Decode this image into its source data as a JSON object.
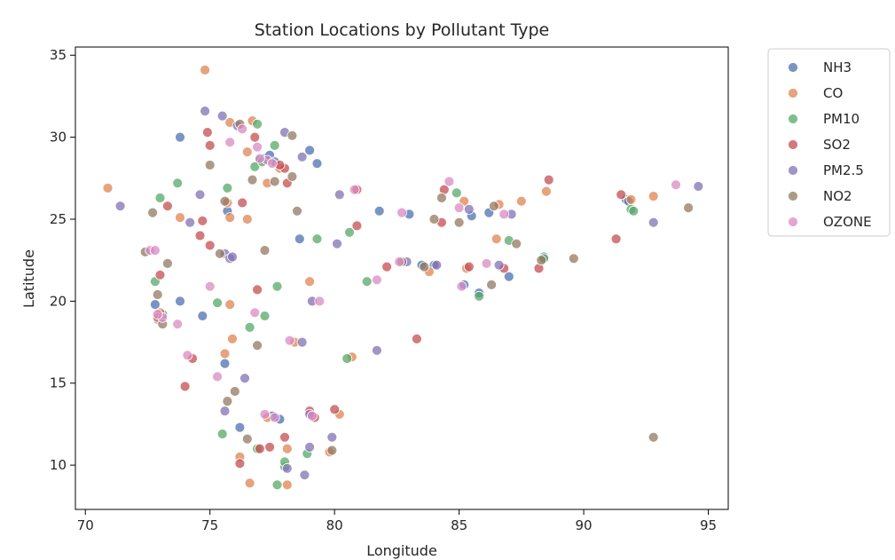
{
  "chart_data": {
    "type": "scatter",
    "title": "Station Locations by Pollutant Type",
    "xlabel": "Longitude",
    "ylabel": "Latitude",
    "xlim": [
      69.6,
      95.8
    ],
    "ylim": [
      7.3,
      35.5
    ],
    "xticks": [
      70,
      75,
      80,
      85,
      90,
      95
    ],
    "yticks": [
      10,
      15,
      20,
      25,
      30,
      35
    ],
    "grid": false,
    "legend_position": "outside-top-right",
    "series": [
      {
        "name": "NH3",
        "color": "#4c72b0",
        "points": [
          [
            73.8,
            30.0
          ],
          [
            77.0,
            28.6
          ],
          [
            77.2,
            28.7
          ],
          [
            77.4,
            28.9
          ],
          [
            77.6,
            28.5
          ],
          [
            79.0,
            29.2
          ],
          [
            79.3,
            28.4
          ],
          [
            72.8,
            19.8
          ],
          [
            73.8,
            20.0
          ],
          [
            74.7,
            19.1
          ],
          [
            75.7,
            25.5
          ],
          [
            77.8,
            12.8
          ],
          [
            77.5,
            13.0
          ],
          [
            75.6,
            16.2
          ],
          [
            76.2,
            12.3
          ],
          [
            72.9,
            18.9
          ],
          [
            73.1,
            19.2
          ],
          [
            81.8,
            25.5
          ],
          [
            83.0,
            25.3
          ],
          [
            84.0,
            22.2
          ],
          [
            85.2,
            21.0
          ],
          [
            85.5,
            25.2
          ],
          [
            86.2,
            25.4
          ],
          [
            87.0,
            21.5
          ],
          [
            88.4,
            22.7
          ],
          [
            91.7,
            26.2
          ],
          [
            91.8,
            26.1
          ],
          [
            83.5,
            22.2
          ],
          [
            78.6,
            23.8
          ],
          [
            85.8,
            20.5
          ]
        ]
      },
      {
        "name": "CO",
        "color": "#dd8452",
        "points": [
          [
            70.9,
            26.9
          ],
          [
            74.8,
            34.1
          ],
          [
            76.7,
            31.0
          ],
          [
            75.8,
            30.9
          ],
          [
            76.5,
            29.1
          ],
          [
            77.8,
            28.1
          ],
          [
            77.3,
            27.2
          ],
          [
            75.7,
            26.0
          ],
          [
            75.8,
            25.1
          ],
          [
            76.5,
            25.0
          ],
          [
            73.8,
            25.1
          ],
          [
            73.0,
            19.3
          ],
          [
            72.9,
            19.0
          ],
          [
            75.9,
            17.7
          ],
          [
            75.8,
            19.8
          ],
          [
            75.6,
            16.8
          ],
          [
            76.2,
            10.5
          ],
          [
            76.6,
            8.9
          ],
          [
            78.1,
            8.8
          ],
          [
            79.8,
            10.8
          ],
          [
            78.1,
            11.0
          ],
          [
            77.3,
            12.9
          ],
          [
            80.2,
            13.1
          ],
          [
            79.0,
            21.2
          ],
          [
            80.7,
            16.6
          ],
          [
            83.8,
            21.8
          ],
          [
            85.2,
            26.1
          ],
          [
            85.3,
            22.0
          ],
          [
            86.6,
            25.9
          ],
          [
            87.5,
            26.1
          ],
          [
            88.5,
            26.7
          ],
          [
            92.8,
            26.4
          ],
          [
            91.9,
            26.2
          ],
          [
            78.4,
            17.5
          ],
          [
            86.5,
            23.8
          ]
        ]
      },
      {
        "name": "PM10",
        "color": "#55a868",
        "points": [
          [
            76.9,
            30.8
          ],
          [
            77.6,
            29.5
          ],
          [
            73.0,
            26.3
          ],
          [
            73.7,
            27.2
          ],
          [
            75.7,
            26.9
          ],
          [
            76.8,
            28.2
          ],
          [
            77.1,
            28.5
          ],
          [
            79.3,
            23.8
          ],
          [
            80.6,
            24.2
          ],
          [
            72.8,
            21.2
          ],
          [
            75.3,
            19.9
          ],
          [
            77.2,
            19.1
          ],
          [
            76.6,
            18.4
          ],
          [
            77.7,
            20.9
          ],
          [
            76.9,
            11.0
          ],
          [
            77.7,
            8.8
          ],
          [
            78.0,
            9.9
          ],
          [
            78.0,
            10.2
          ],
          [
            81.3,
            21.2
          ],
          [
            80.5,
            16.5
          ],
          [
            84.9,
            26.6
          ],
          [
            85.8,
            20.3
          ],
          [
            87.0,
            23.7
          ],
          [
            88.4,
            22.6
          ],
          [
            91.9,
            25.6
          ],
          [
            92.0,
            25.5
          ],
          [
            78.9,
            10.7
          ],
          [
            75.5,
            11.9
          ]
        ]
      },
      {
        "name": "SO2",
        "color": "#c44e52",
        "points": [
          [
            74.9,
            30.3
          ],
          [
            75.0,
            29.5
          ],
          [
            76.8,
            30.0
          ],
          [
            78.0,
            28.1
          ],
          [
            78.1,
            27.2
          ],
          [
            77.8,
            28.3
          ],
          [
            76.3,
            26.0
          ],
          [
            74.7,
            24.9
          ],
          [
            73.3,
            25.8
          ],
          [
            74.6,
            24.0
          ],
          [
            73.0,
            21.6
          ],
          [
            75.0,
            23.4
          ],
          [
            76.9,
            20.7
          ],
          [
            74.0,
            14.8
          ],
          [
            74.3,
            16.5
          ],
          [
            76.2,
            10.1
          ],
          [
            77.4,
            11.1
          ],
          [
            77.0,
            11.0
          ],
          [
            78.0,
            11.7
          ],
          [
            79.2,
            12.9
          ],
          [
            79.0,
            13.3
          ],
          [
            80.0,
            13.4
          ],
          [
            80.9,
            26.8
          ],
          [
            80.9,
            24.6
          ],
          [
            82.1,
            22.1
          ],
          [
            83.3,
            17.7
          ],
          [
            84.3,
            24.8
          ],
          [
            85.4,
            22.1
          ],
          [
            86.8,
            22.0
          ],
          [
            88.2,
            22.0
          ],
          [
            88.6,
            27.4
          ],
          [
            84.4,
            26.8
          ],
          [
            91.3,
            23.8
          ],
          [
            91.5,
            26.5
          ]
        ]
      },
      {
        "name": "PM2.5",
        "color": "#8172b3",
        "points": [
          [
            71.4,
            25.8
          ],
          [
            74.8,
            31.6
          ],
          [
            75.5,
            31.3
          ],
          [
            76.1,
            30.7
          ],
          [
            78.7,
            28.8
          ],
          [
            78.0,
            30.3
          ],
          [
            75.6,
            22.9
          ],
          [
            74.6,
            26.5
          ],
          [
            75.8,
            22.6
          ],
          [
            76.4,
            15.3
          ],
          [
            75.6,
            13.3
          ],
          [
            78.1,
            9.8
          ],
          [
            78.8,
            9.4
          ],
          [
            79.0,
            11.1
          ],
          [
            79.9,
            11.7
          ],
          [
            79.0,
            13.1
          ],
          [
            80.1,
            23.5
          ],
          [
            80.2,
            26.5
          ],
          [
            81.7,
            17.0
          ],
          [
            84.1,
            22.2
          ],
          [
            85.4,
            25.6
          ],
          [
            86.6,
            22.2
          ],
          [
            87.1,
            25.3
          ],
          [
            92.8,
            24.8
          ],
          [
            94.6,
            27.0
          ],
          [
            75.9,
            22.7
          ],
          [
            79.1,
            20.0
          ],
          [
            78.7,
            17.5
          ],
          [
            74.2,
            24.8
          ],
          [
            82.9,
            22.4
          ]
        ]
      },
      {
        "name": "NO2",
        "color": "#937860",
        "points": [
          [
            76.2,
            30.8
          ],
          [
            75.0,
            28.3
          ],
          [
            78.3,
            30.1
          ],
          [
            78.3,
            27.6
          ],
          [
            77.6,
            27.3
          ],
          [
            76.7,
            27.4
          ],
          [
            75.6,
            26.1
          ],
          [
            72.7,
            25.4
          ],
          [
            72.4,
            23.0
          ],
          [
            77.2,
            23.1
          ],
          [
            73.3,
            22.3
          ],
          [
            72.9,
            20.4
          ],
          [
            73.1,
            18.6
          ],
          [
            75.4,
            22.9
          ],
          [
            76.9,
            17.3
          ],
          [
            76.0,
            14.5
          ],
          [
            76.5,
            11.6
          ],
          [
            75.7,
            13.9
          ],
          [
            79.9,
            10.9
          ],
          [
            78.5,
            25.5
          ],
          [
            82.7,
            22.4
          ],
          [
            84.0,
            25.0
          ],
          [
            84.3,
            26.3
          ],
          [
            86.3,
            21.0
          ],
          [
            86.4,
            25.8
          ],
          [
            87.3,
            23.5
          ],
          [
            88.3,
            22.5
          ],
          [
            89.6,
            22.6
          ],
          [
            83.6,
            22.1
          ],
          [
            85.0,
            24.8
          ],
          [
            92.8,
            11.7
          ],
          [
            94.2,
            25.7
          ]
        ]
      },
      {
        "name": "OZONE",
        "color": "#da8bc3",
        "points": [
          [
            76.3,
            30.5
          ],
          [
            76.9,
            29.4
          ],
          [
            77.3,
            28.6
          ],
          [
            77.0,
            28.7
          ],
          [
            77.5,
            28.4
          ],
          [
            75.8,
            29.7
          ],
          [
            73.1,
            19.0
          ],
          [
            73.7,
            18.6
          ],
          [
            72.6,
            23.1
          ],
          [
            72.8,
            23.1
          ],
          [
            74.1,
            16.7
          ],
          [
            75.3,
            15.4
          ],
          [
            75.0,
            20.9
          ],
          [
            76.8,
            19.3
          ],
          [
            77.2,
            13.1
          ],
          [
            77.6,
            12.9
          ],
          [
            78.2,
            17.6
          ],
          [
            79.1,
            13.0
          ],
          [
            79.4,
            20.0
          ],
          [
            80.8,
            26.8
          ],
          [
            81.7,
            21.3
          ],
          [
            82.6,
            22.4
          ],
          [
            84.6,
            27.3
          ],
          [
            85.0,
            25.7
          ],
          [
            85.1,
            20.9
          ],
          [
            86.1,
            22.3
          ],
          [
            86.8,
            25.3
          ],
          [
            93.7,
            27.1
          ],
          [
            72.9,
            19.2
          ],
          [
            82.7,
            25.4
          ]
        ]
      }
    ]
  }
}
